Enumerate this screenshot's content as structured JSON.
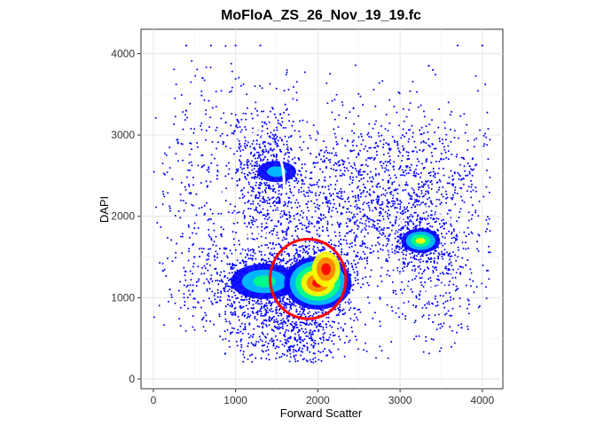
{
  "chart_data": {
    "type": "scatter",
    "title": "MoFloA_ZS_26_Nov_19_19.fc",
    "xlabel": "Forward Scatter",
    "ylabel": "DAPI",
    "xlim": [
      -150,
      4250
    ],
    "ylim": [
      -120,
      4300
    ],
    "x_ticks": [
      0,
      1000,
      2000,
      3000,
      4000
    ],
    "y_ticks": [
      0,
      1000,
      2000,
      3000,
      4000
    ],
    "x_tick_labels": [
      "0",
      "1000",
      "2000",
      "3000",
      "4000"
    ],
    "y_tick_labels": [
      "0",
      "1000",
      "2000",
      "3000",
      "4000"
    ],
    "grid": true,
    "point_color": "#0000ff",
    "density_colormap": [
      "#0000ff",
      "#00c8ff",
      "#00ff80",
      "#ffff00",
      "#ff8000",
      "#ff0000"
    ],
    "series": [
      {
        "points": [
          [
            1280,
            1120
          ],
          [
            1380,
            1050
          ],
          [
            1550,
            1180
          ],
          [
            1100,
            1200
          ],
          [
            1700,
            1250
          ],
          [
            1400,
            1300
          ],
          [
            1900,
            1300
          ],
          [
            2050,
            1200
          ],
          [
            2150,
            1350
          ],
          [
            2100,
            1150
          ],
          [
            1950,
            1100
          ],
          [
            1800,
            1400
          ],
          [
            3250,
            1700
          ],
          [
            3400,
            1650
          ],
          [
            3150,
            1550
          ],
          [
            3100,
            1800
          ],
          [
            1400,
            2900
          ],
          [
            1500,
            2600
          ],
          [
            1450,
            2450
          ],
          [
            1350,
            2200
          ],
          [
            1500,
            2750
          ],
          [
            2600,
            2300
          ],
          [
            3000,
            2600
          ],
          [
            3500,
            2700
          ],
          [
            3800,
            2500
          ],
          [
            2400,
            2800
          ],
          [
            1700,
            600
          ],
          [
            1900,
            500
          ],
          [
            1500,
            400
          ],
          [
            2200,
            700
          ],
          [
            1200,
            300
          ],
          [
            300,
            2900
          ],
          [
            400,
            3300
          ],
          [
            600,
            3700
          ],
          [
            200,
            1100
          ],
          [
            500,
            1500
          ],
          [
            3600,
            1200
          ],
          [
            3800,
            1400
          ],
          [
            3200,
            1000
          ],
          [
            3400,
            700
          ],
          [
            3400,
            3800
          ],
          [
            3350,
            3850
          ],
          [
            3700,
            4100
          ],
          [
            4000,
            4100
          ],
          [
            400,
            4100
          ],
          [
            700,
            4100
          ],
          [
            1000,
            4100
          ],
          [
            1300,
            4100
          ]
        ]
      }
    ],
    "gates": [
      {
        "shape": "ellipse",
        "color": "#ffffff",
        "center": [
          1200,
          2400
        ],
        "rx": 390,
        "ry": 650
      },
      {
        "shape": "ellipse",
        "color": "#ff0000",
        "center": [
          1880,
          1230
        ],
        "rx": 460,
        "ry": 490
      },
      {
        "shape": "ellipse",
        "color": "#ffffff",
        "center": [
          3310,
          1600
        ],
        "rx": 430,
        "ry": 500
      }
    ]
  }
}
